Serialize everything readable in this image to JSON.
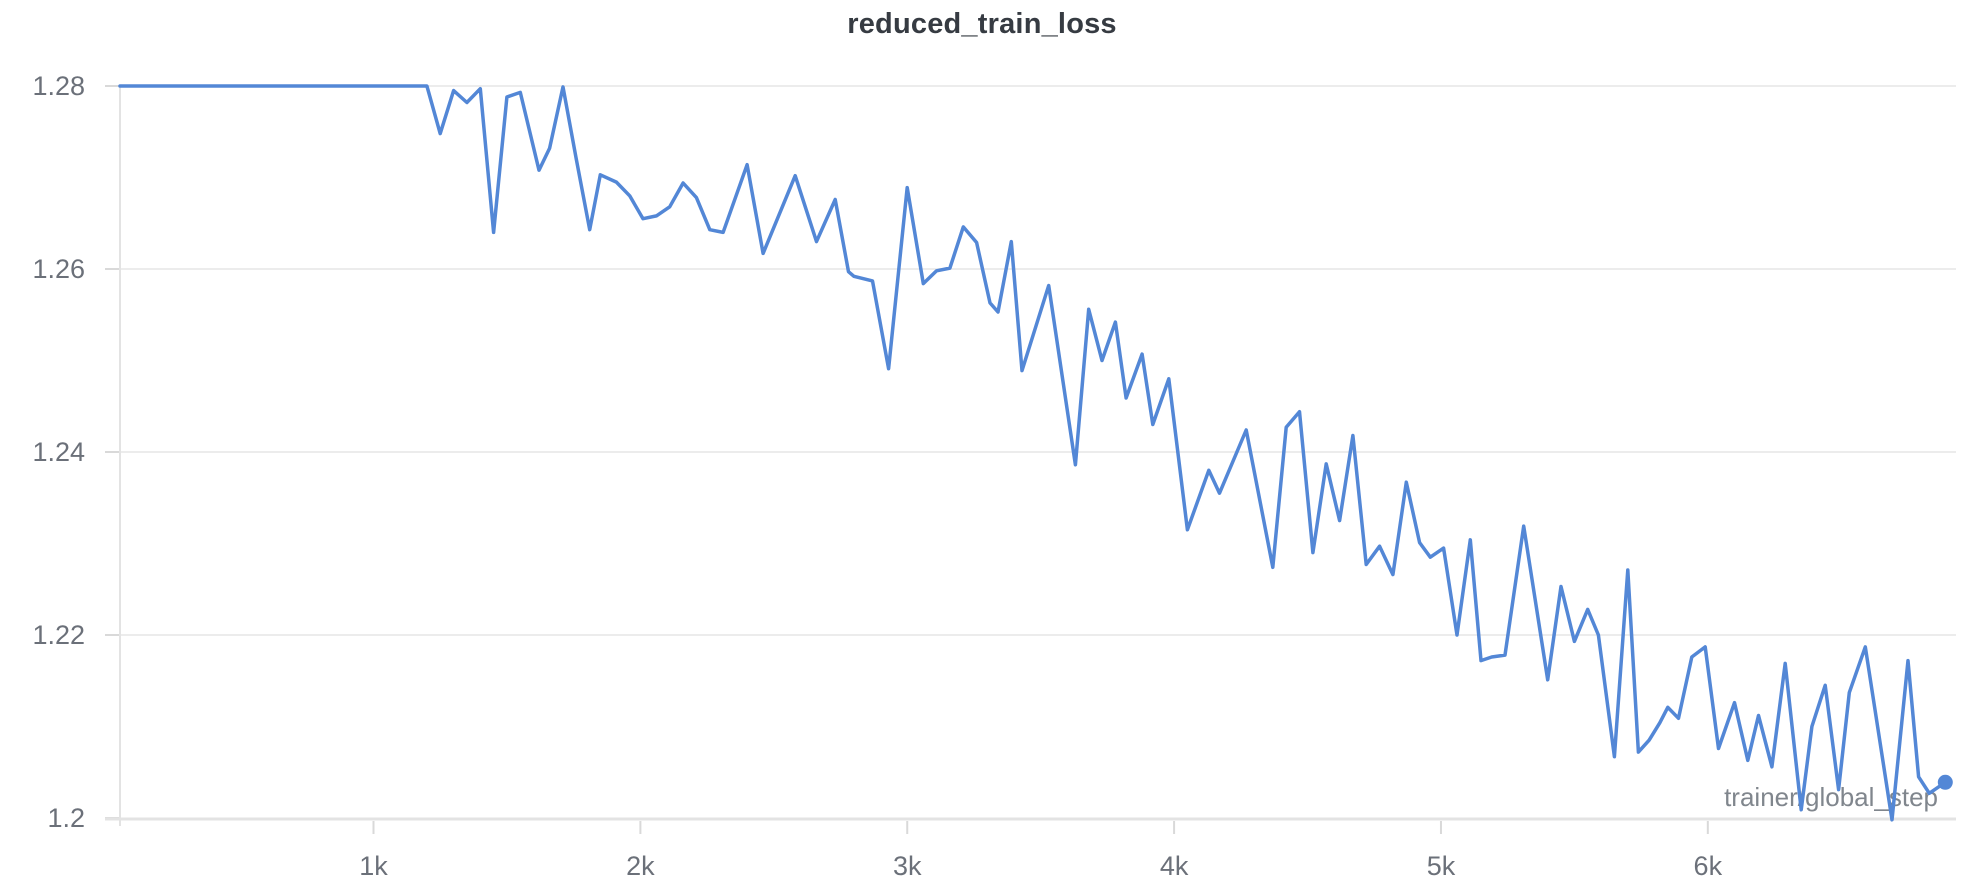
{
  "chart_data": {
    "type": "line",
    "title": "reduced_train_loss",
    "xlabel": "trainer/global_step",
    "ylabel": "",
    "legend": "none",
    "grid": "horizontal",
    "x_axis": {
      "range": [
        50,
        6930
      ],
      "ticks": [
        1000,
        2000,
        3000,
        4000,
        5000,
        6000
      ],
      "tick_labels": [
        "1k",
        "2k",
        "3k",
        "4k",
        "5k",
        "6k"
      ]
    },
    "y_axis": {
      "range": [
        1.2,
        1.28
      ],
      "ticks": [
        1.2,
        1.22,
        1.24,
        1.26,
        1.28
      ],
      "tick_labels": [
        "1.2",
        "1.22",
        "1.24",
        "1.26",
        "1.28"
      ]
    },
    "series": [
      {
        "name": "reduced_train_loss",
        "color": "#5387d6",
        "end_marker": true,
        "points": [
          [
            50,
            1.28
          ],
          [
            100,
            1.28
          ],
          [
            150,
            1.28
          ],
          [
            200,
            1.28
          ],
          [
            250,
            1.28
          ],
          [
            300,
            1.28
          ],
          [
            350,
            1.28
          ],
          [
            400,
            1.28
          ],
          [
            450,
            1.28
          ],
          [
            500,
            1.28
          ],
          [
            550,
            1.28
          ],
          [
            600,
            1.28
          ],
          [
            650,
            1.28
          ],
          [
            700,
            1.28
          ],
          [
            750,
            1.28
          ],
          [
            800,
            1.28
          ],
          [
            850,
            1.28
          ],
          [
            900,
            1.28
          ],
          [
            950,
            1.28
          ],
          [
            1000,
            1.28
          ],
          [
            1050,
            1.28
          ],
          [
            1100,
            1.28
          ],
          [
            1150,
            1.28
          ],
          [
            1200,
            1.28
          ],
          [
            1250,
            1.2748
          ],
          [
            1300,
            1.2795
          ],
          [
            1350,
            1.2782
          ],
          [
            1400,
            1.2797
          ],
          [
            1450,
            1.264
          ],
          [
            1500,
            1.2788
          ],
          [
            1550,
            1.2793
          ],
          [
            1620,
            1.2708
          ],
          [
            1660,
            1.2732
          ],
          [
            1710,
            1.2799
          ],
          [
            1760,
            1.272
          ],
          [
            1810,
            1.2643
          ],
          [
            1850,
            1.2703
          ],
          [
            1910,
            1.2695
          ],
          [
            1960,
            1.268
          ],
          [
            2010,
            1.2655
          ],
          [
            2060,
            1.2658
          ],
          [
            2110,
            1.2668
          ],
          [
            2160,
            1.2694
          ],
          [
            2210,
            1.2678
          ],
          [
            2260,
            1.2643
          ],
          [
            2310,
            1.264
          ],
          [
            2400,
            1.2714
          ],
          [
            2460,
            1.2617
          ],
          [
            2580,
            1.2702
          ],
          [
            2660,
            1.263
          ],
          [
            2730,
            1.2676
          ],
          [
            2780,
            1.2597
          ],
          [
            2800,
            1.2592
          ],
          [
            2870,
            1.2587
          ],
          [
            2930,
            1.2491
          ],
          [
            3000,
            1.2689
          ],
          [
            3060,
            1.2584
          ],
          [
            3110,
            1.2598
          ],
          [
            3160,
            1.2601
          ],
          [
            3210,
            1.2646
          ],
          [
            3260,
            1.2629
          ],
          [
            3310,
            1.2563
          ],
          [
            3340,
            1.2553
          ],
          [
            3390,
            1.263
          ],
          [
            3430,
            1.2489
          ],
          [
            3530,
            1.2582
          ],
          [
            3630,
            1.2386
          ],
          [
            3680,
            1.2556
          ],
          [
            3730,
            1.25
          ],
          [
            3780,
            1.2542
          ],
          [
            3820,
            1.2459
          ],
          [
            3880,
            1.2507
          ],
          [
            3920,
            1.243
          ],
          [
            3980,
            1.248
          ],
          [
            4050,
            1.2315
          ],
          [
            4130,
            1.238
          ],
          [
            4170,
            1.2355
          ],
          [
            4270,
            1.2424
          ],
          [
            4370,
            1.2274
          ],
          [
            4420,
            1.2427
          ],
          [
            4470,
            1.2444
          ],
          [
            4520,
            1.229
          ],
          [
            4570,
            1.2387
          ],
          [
            4620,
            1.2325
          ],
          [
            4670,
            1.2418
          ],
          [
            4720,
            1.2277
          ],
          [
            4770,
            1.2297
          ],
          [
            4820,
            1.2266
          ],
          [
            4870,
            1.2367
          ],
          [
            4920,
            1.2301
          ],
          [
            4960,
            1.2285
          ],
          [
            5010,
            1.2295
          ],
          [
            5060,
            1.22
          ],
          [
            5110,
            1.2304
          ],
          [
            5150,
            1.2172
          ],
          [
            5190,
            1.2176
          ],
          [
            5240,
            1.2178
          ],
          [
            5310,
            1.2319
          ],
          [
            5400,
            1.2151
          ],
          [
            5450,
            1.2253
          ],
          [
            5500,
            1.2193
          ],
          [
            5550,
            1.2228
          ],
          [
            5590,
            1.22
          ],
          [
            5650,
            1.2067
          ],
          [
            5700,
            1.2271
          ],
          [
            5740,
            1.2072
          ],
          [
            5780,
            1.2085
          ],
          [
            5820,
            1.2104
          ],
          [
            5850,
            1.2121
          ],
          [
            5890,
            1.2109
          ],
          [
            5940,
            1.2176
          ],
          [
            5990,
            1.2187
          ],
          [
            6040,
            1.2076
          ],
          [
            6100,
            1.2126
          ],
          [
            6150,
            1.2063
          ],
          [
            6190,
            1.2112
          ],
          [
            6240,
            1.2056
          ],
          [
            6290,
            1.2169
          ],
          [
            6350,
            1.2009
          ],
          [
            6390,
            1.21
          ],
          [
            6440,
            1.2145
          ],
          [
            6490,
            1.2031
          ],
          [
            6530,
            1.2137
          ],
          [
            6590,
            1.2187
          ],
          [
            6690,
            1.1998
          ],
          [
            6750,
            1.2172
          ],
          [
            6790,
            1.2045
          ],
          [
            6830,
            1.2027
          ],
          [
            6890,
            1.2039
          ]
        ]
      }
    ]
  },
  "style": {
    "background": "#ffffff",
    "line_color": "#5387d6",
    "grid_color": "#ececec",
    "axis_color": "#e3e3e3",
    "tick_color": "#d9d9d9",
    "tick_label_color": "#6b7079",
    "axis_label_color": "#80868d",
    "title_color": "#363b42"
  }
}
